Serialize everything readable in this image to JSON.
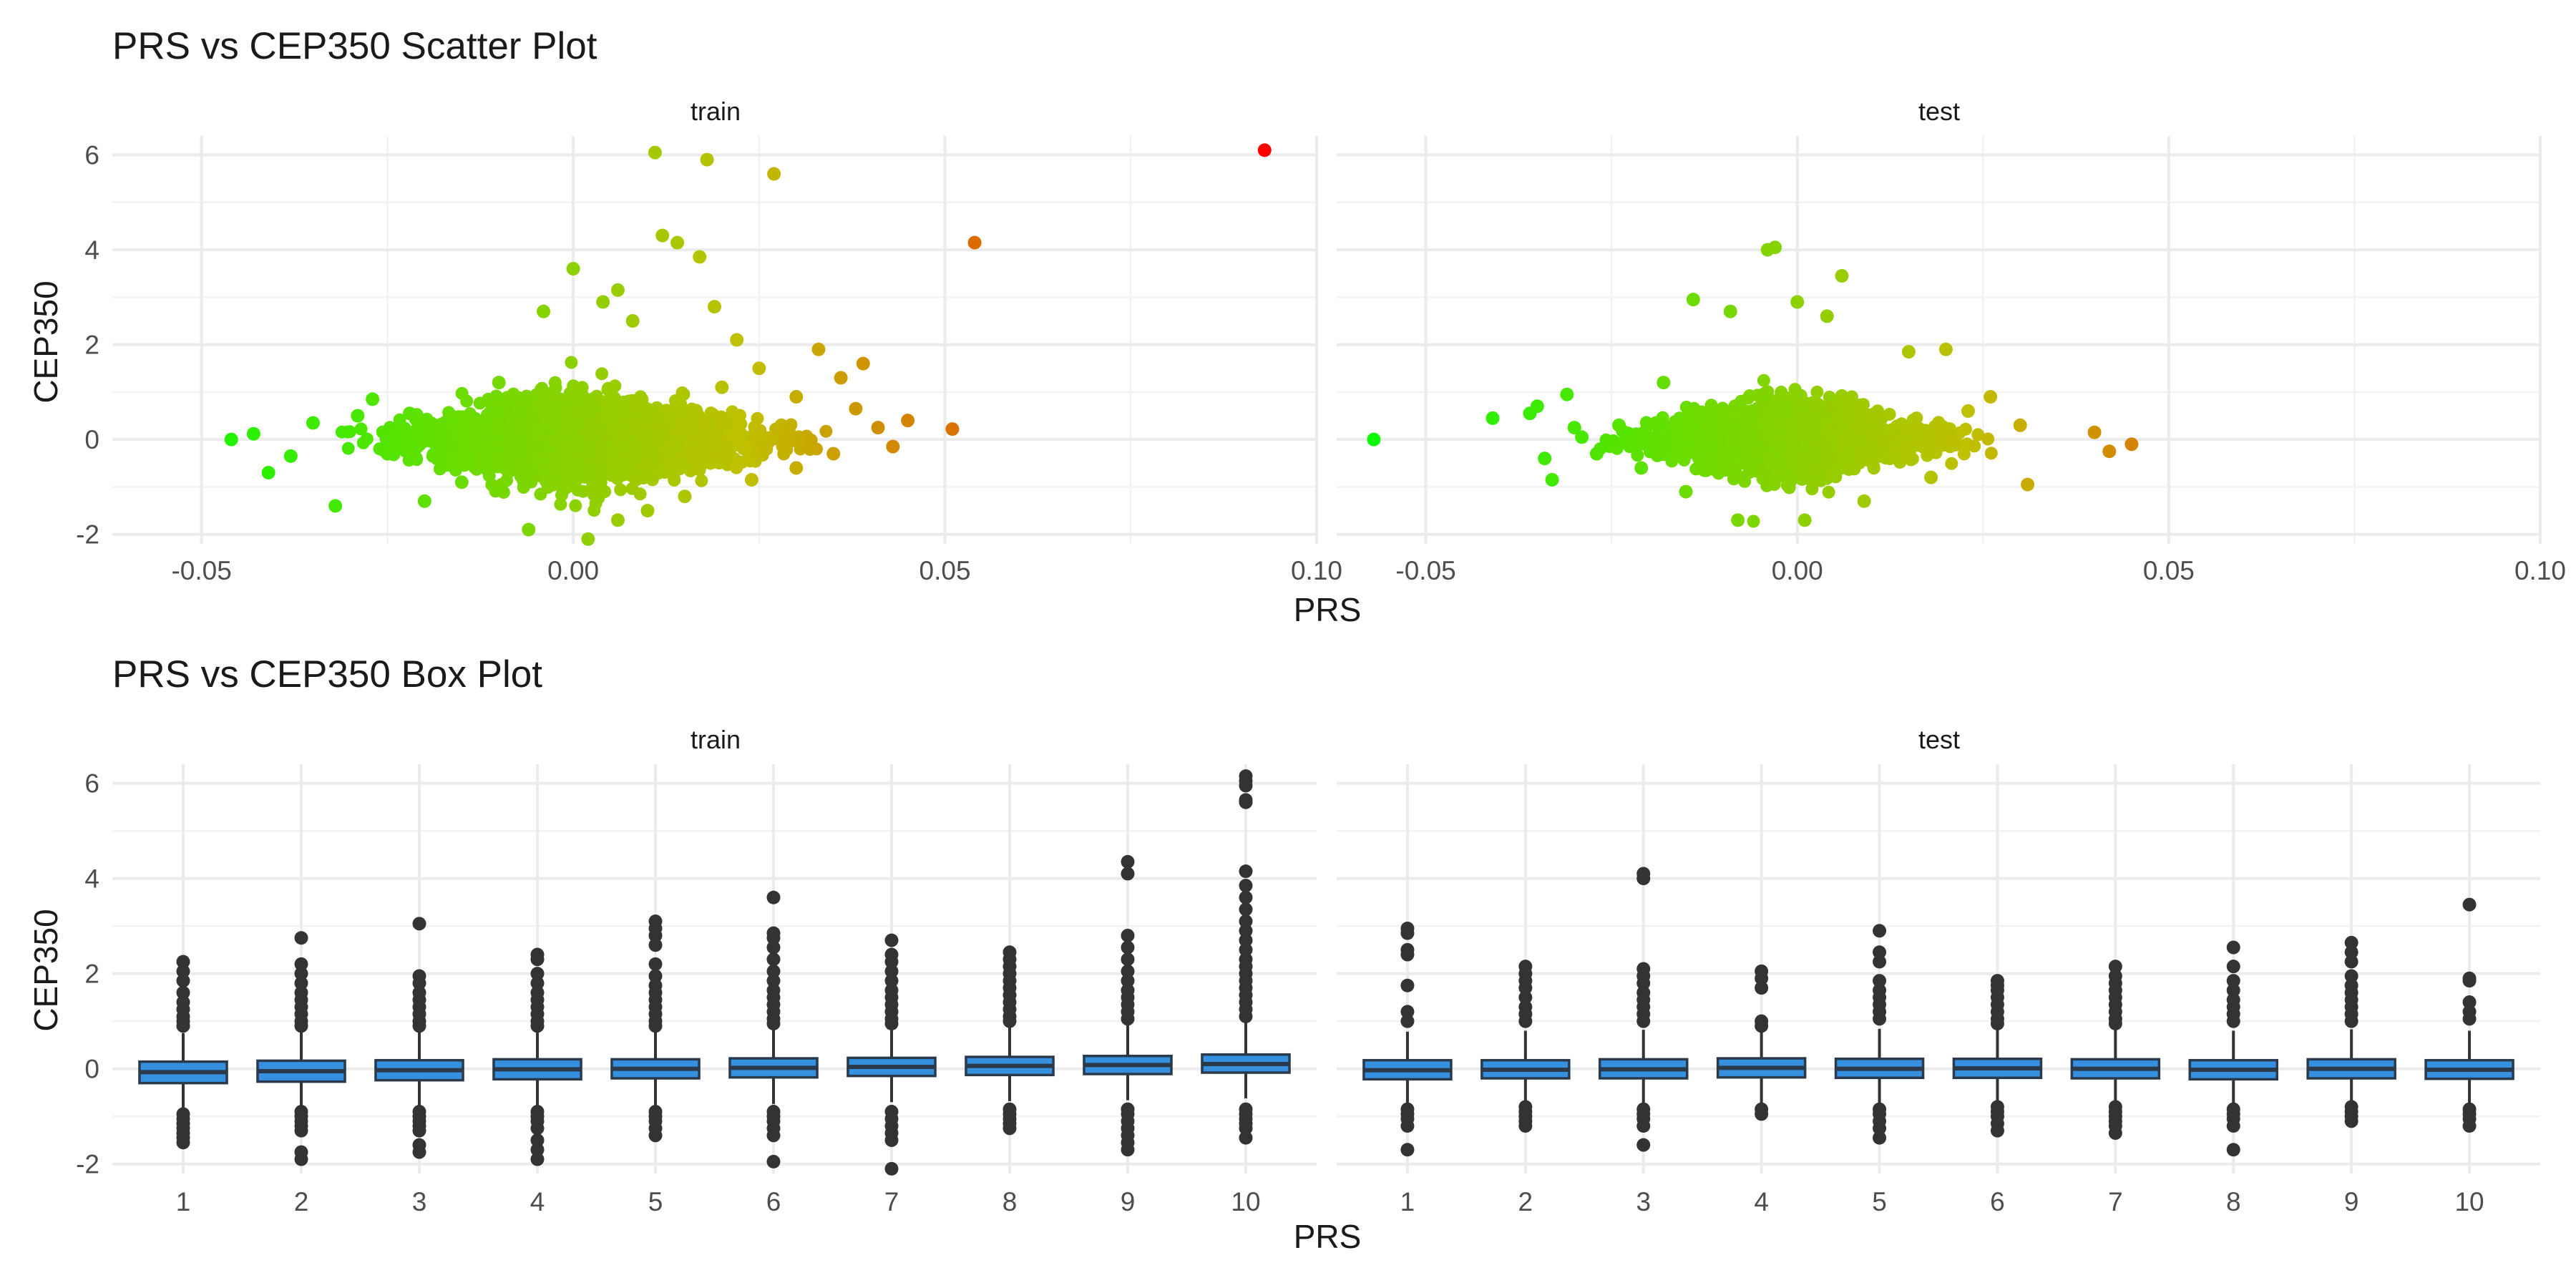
{
  "chart_data": [
    {
      "type": "scatter",
      "title": "PRS vs CEP350 Scatter Plot",
      "xlabel": "PRS",
      "ylabel": "CEP350",
      "xlim": [
        -0.062,
        0.1
      ],
      "ylim": [
        -2.2,
        6.4
      ],
      "x_ticks": [
        -0.05,
        0.0,
        0.05,
        0.1
      ],
      "x_tick_labels": [
        "-0.05",
        "0.00",
        "0.05",
        "0.10"
      ],
      "y_ticks": [
        -2,
        0,
        2,
        4,
        6
      ],
      "color_scale": {
        "low": "#00ff00",
        "mid": "#c0c000",
        "high": "#ff0000",
        "by": "PRS"
      },
      "grid": true,
      "panels": [
        {
          "name": "train",
          "bulk_summary": {
            "x_center": 0.002,
            "x_sd": 0.011,
            "y_sd": 0.45
          },
          "points": [
            [
              0.093,
              6.1
            ],
            [
              0.054,
              4.15
            ],
            [
              0.027,
              5.6
            ],
            [
              0.018,
              5.9
            ],
            [
              0.011,
              6.05
            ],
            [
              0.012,
              4.3
            ],
            [
              0.014,
              4.15
            ],
            [
              0.017,
              3.85
            ],
            [
              0.0,
              3.6
            ],
            [
              0.051,
              0.22
            ],
            [
              0.045,
              0.4
            ],
            [
              0.041,
              0.25
            ],
            [
              0.039,
              1.6
            ],
            [
              0.036,
              1.3
            ],
            [
              0.033,
              1.9
            ],
            [
              -0.046,
              0.0
            ],
            [
              -0.043,
              0.12
            ],
            [
              -0.041,
              -0.7
            ],
            [
              -0.038,
              -0.35
            ],
            [
              -0.035,
              0.35
            ],
            [
              -0.032,
              -1.4
            ],
            [
              -0.029,
              0.5
            ],
            [
              -0.027,
              0.85
            ],
            [
              -0.025,
              -0.3
            ],
            [
              -0.022,
              0.55
            ],
            [
              -0.02,
              -1.3
            ],
            [
              -0.018,
              0.3
            ],
            [
              -0.015,
              -0.9
            ],
            [
              -0.006,
              -1.9
            ],
            [
              0.002,
              -2.1
            ],
            [
              0.006,
              -1.7
            ],
            [
              0.01,
              -1.5
            ],
            [
              0.015,
              -1.2
            ],
            [
              0.022,
              2.1
            ],
            [
              0.025,
              1.5
            ],
            [
              0.03,
              0.9
            ],
            [
              0.03,
              -0.6
            ],
            [
              0.035,
              -0.3
            ],
            [
              0.038,
              0.65
            ],
            [
              0.043,
              -0.15
            ],
            [
              -0.004,
              2.7
            ],
            [
              0.004,
              2.9
            ],
            [
              0.008,
              2.5
            ],
            [
              0.019,
              2.8
            ],
            [
              0.006,
              3.15
            ],
            [
              -0.01,
              1.2
            ],
            [
              -0.012,
              -0.5
            ],
            [
              0.02,
              1.1
            ],
            [
              0.028,
              0.3
            ],
            [
              0.024,
              -0.85
            ]
          ]
        },
        {
          "name": "test",
          "bulk_summary": {
            "x_center": -0.001,
            "x_sd": 0.0085,
            "y_sd": 0.42
          },
          "points": [
            [
              -0.057,
              0.0
            ],
            [
              -0.041,
              0.45
            ],
            [
              -0.036,
              0.55
            ],
            [
              -0.035,
              0.7
            ],
            [
              -0.034,
              -0.4
            ],
            [
              -0.033,
              -0.85
            ],
            [
              -0.031,
              0.95
            ],
            [
              -0.03,
              0.25
            ],
            [
              -0.029,
              0.05
            ],
            [
              -0.027,
              -0.3
            ],
            [
              -0.024,
              0.3
            ],
            [
              -0.021,
              -0.6
            ],
            [
              -0.019,
              0.35
            ],
            [
              -0.014,
              2.95
            ],
            [
              -0.008,
              -1.7
            ],
            [
              -0.004,
              4.0
            ],
            [
              -0.003,
              4.05
            ],
            [
              0.006,
              3.45
            ],
            [
              0.04,
              0.15
            ],
            [
              0.042,
              -0.25
            ],
            [
              0.045,
              -0.1
            ],
            [
              0.031,
              -0.95
            ],
            [
              0.03,
              0.3
            ],
            [
              0.026,
              0.9
            ],
            [
              0.02,
              1.9
            ],
            [
              0.015,
              1.85
            ],
            [
              0.004,
              2.6
            ],
            [
              0.0,
              2.9
            ],
            [
              -0.009,
              2.7
            ],
            [
              0.001,
              -1.7
            ],
            [
              0.009,
              -1.3
            ],
            [
              -0.015,
              -1.1
            ],
            [
              -0.018,
              1.2
            ],
            [
              0.018,
              -0.8
            ],
            [
              0.023,
              0.6
            ]
          ]
        }
      ]
    },
    {
      "type": "box",
      "title": "PRS vs CEP350 Box Plot",
      "xlabel": "PRS",
      "ylabel": "CEP350",
      "categories": [
        "1",
        "2",
        "3",
        "4",
        "5",
        "6",
        "7",
        "8",
        "9",
        "10"
      ],
      "ylim": [
        -2.2,
        6.4
      ],
      "y_ticks": [
        -2,
        0,
        2,
        4,
        6
      ],
      "box_color": "#3690e0",
      "grid": true,
      "panels": [
        {
          "name": "train",
          "boxes": [
            {
              "q1": -0.3,
              "median": -0.07,
              "q3": 0.15,
              "lower": -0.85,
              "upper": 0.75,
              "outliers": [
                2.25,
                2.05,
                1.85,
                1.6,
                1.4,
                1.25,
                1.1,
                1.0,
                0.9,
                -0.95,
                -1.05,
                -1.15,
                -1.25,
                -1.35,
                -1.45,
                -1.55
              ]
            },
            {
              "q1": -0.27,
              "median": -0.05,
              "q3": 0.17,
              "lower": -0.82,
              "upper": 0.78,
              "outliers": [
                2.75,
                2.2,
                2.0,
                1.8,
                1.6,
                1.45,
                1.3,
                1.15,
                1.0,
                0.9,
                -0.9,
                -1.0,
                -1.1,
                -1.2,
                -1.3,
                -1.75,
                -1.9
              ]
            },
            {
              "q1": -0.24,
              "median": -0.03,
              "q3": 0.18,
              "lower": -0.8,
              "upper": 0.8,
              "outliers": [
                3.05,
                1.95,
                1.8,
                1.6,
                1.45,
                1.3,
                1.15,
                1.0,
                0.9,
                -0.9,
                -1.0,
                -1.1,
                -1.2,
                -1.3,
                -1.6,
                -1.75
              ]
            },
            {
              "q1": -0.22,
              "median": -0.01,
              "q3": 0.2,
              "lower": -0.78,
              "upper": 0.82,
              "outliers": [
                2.4,
                2.3,
                2.0,
                1.8,
                1.6,
                1.45,
                1.3,
                1.15,
                1.0,
                0.9,
                -0.9,
                -1.0,
                -1.1,
                -1.25,
                -1.5,
                -1.7,
                -1.9
              ]
            },
            {
              "q1": -0.2,
              "median": 0.0,
              "q3": 0.2,
              "lower": -0.76,
              "upper": 0.84,
              "outliers": [
                3.1,
                2.95,
                2.8,
                2.6,
                2.2,
                1.95,
                1.75,
                1.6,
                1.45,
                1.3,
                1.15,
                1.0,
                0.9,
                -0.9,
                -1.0,
                -1.1,
                -1.25,
                -1.4
              ]
            },
            {
              "q1": -0.18,
              "median": 0.02,
              "q3": 0.22,
              "lower": -0.74,
              "upper": 0.86,
              "outliers": [
                3.6,
                2.85,
                2.75,
                2.55,
                2.3,
                2.05,
                1.85,
                1.65,
                1.5,
                1.35,
                1.2,
                1.05,
                0.95,
                -0.9,
                -1.0,
                -1.1,
                -1.25,
                -1.4,
                -1.95
              ]
            },
            {
              "q1": -0.15,
              "median": 0.04,
              "q3": 0.23,
              "lower": -0.7,
              "upper": 0.9,
              "outliers": [
                2.7,
                2.4,
                2.25,
                2.05,
                1.85,
                1.65,
                1.5,
                1.35,
                1.2,
                1.05,
                0.95,
                -0.9,
                -1.05,
                -1.2,
                -1.35,
                -1.5,
                -2.1
              ]
            },
            {
              "q1": -0.13,
              "median": 0.06,
              "q3": 0.25,
              "lower": -0.68,
              "upper": 0.92,
              "outliers": [
                2.45,
                2.3,
                2.15,
                2.0,
                1.85,
                1.7,
                1.55,
                1.4,
                1.25,
                1.1,
                1.0,
                -0.85,
                -0.95,
                -1.05,
                -1.15,
                -1.25
              ]
            },
            {
              "q1": -0.11,
              "median": 0.08,
              "q3": 0.27,
              "lower": -0.66,
              "upper": 0.95,
              "outliers": [
                4.35,
                4.1,
                2.8,
                2.55,
                2.3,
                2.05,
                1.85,
                1.65,
                1.5,
                1.35,
                1.2,
                1.05,
                -0.85,
                -0.95,
                -1.1,
                -1.25,
                -1.4,
                -1.55,
                -1.7
              ]
            },
            {
              "q1": -0.08,
              "median": 0.1,
              "q3": 0.3,
              "lower": -0.62,
              "upper": 1.0,
              "outliers": [
                6.15,
                6.05,
                5.95,
                5.65,
                5.6,
                4.15,
                3.85,
                3.6,
                3.35,
                3.1,
                2.9,
                2.7,
                2.5,
                2.3,
                2.15,
                2.0,
                1.85,
                1.7,
                1.55,
                1.4,
                1.25,
                1.1,
                -0.85,
                -0.95,
                -1.05,
                -1.15,
                -1.25,
                -1.45
              ]
            }
          ]
        },
        {
          "name": "test",
          "boxes": [
            {
              "q1": -0.22,
              "median": -0.03,
              "q3": 0.18,
              "lower": -0.78,
              "upper": 0.78,
              "outliers": [
                2.95,
                2.85,
                2.5,
                2.4,
                1.75,
                1.2,
                1.0,
                -0.85,
                -0.95,
                -1.05,
                -1.2,
                -1.7
              ]
            },
            {
              "q1": -0.2,
              "median": -0.02,
              "q3": 0.18,
              "lower": -0.76,
              "upper": 0.8,
              "outliers": [
                2.15,
                2.0,
                1.85,
                1.7,
                1.5,
                1.3,
                1.15,
                1.0,
                -0.8,
                -0.9,
                -1.0,
                -1.1,
                -1.2
              ]
            },
            {
              "q1": -0.2,
              "median": -0.01,
              "q3": 0.2,
              "lower": -0.76,
              "upper": 0.82,
              "outliers": [
                4.1,
                4.0,
                2.1,
                1.95,
                1.8,
                1.6,
                1.45,
                1.3,
                1.15,
                1.0,
                -0.85,
                -0.95,
                -1.05,
                -1.2,
                -1.6
              ]
            },
            {
              "q1": -0.18,
              "median": 0.02,
              "q3": 0.22,
              "lower": -0.72,
              "upper": 0.86,
              "outliers": [
                2.05,
                1.9,
                1.7,
                1.0,
                0.9,
                -0.85,
                -0.95
              ]
            },
            {
              "q1": -0.19,
              "median": 0.0,
              "q3": 0.21,
              "lower": -0.74,
              "upper": 0.84,
              "outliers": [
                2.9,
                2.45,
                2.25,
                1.85,
                1.65,
                1.5,
                1.35,
                1.2,
                1.05,
                -0.85,
                -0.95,
                -1.1,
                -1.25,
                -1.45
              ]
            },
            {
              "q1": -0.19,
              "median": 0.01,
              "q3": 0.21,
              "lower": -0.74,
              "upper": 0.84,
              "outliers": [
                1.85,
                1.75,
                1.65,
                1.5,
                1.35,
                1.2,
                1.05,
                0.95,
                -0.8,
                -0.9,
                -1.0,
                -1.15,
                -1.3
              ]
            },
            {
              "q1": -0.2,
              "median": 0.0,
              "q3": 0.2,
              "lower": -0.75,
              "upper": 0.83,
              "outliers": [
                2.15,
                1.95,
                1.8,
                1.65,
                1.5,
                1.35,
                1.2,
                1.05,
                0.95,
                -0.8,
                -0.9,
                -1.0,
                -1.1,
                -1.2,
                -1.35
              ]
            },
            {
              "q1": -0.22,
              "median": -0.02,
              "q3": 0.18,
              "lower": -0.78,
              "upper": 0.8,
              "outliers": [
                2.55,
                2.15,
                1.85,
                1.65,
                1.45,
                1.3,
                1.15,
                1.0,
                -0.85,
                -0.95,
                -1.05,
                -1.2,
                -1.7
              ]
            },
            {
              "q1": -0.2,
              "median": 0.0,
              "q3": 0.2,
              "lower": -0.75,
              "upper": 0.83,
              "outliers": [
                2.65,
                2.45,
                2.25,
                1.95,
                1.75,
                1.6,
                1.45,
                1.3,
                1.15,
                1.0,
                -0.8,
                -0.9,
                -1.0,
                -1.1
              ]
            },
            {
              "q1": -0.21,
              "median": -0.02,
              "q3": 0.18,
              "lower": -0.77,
              "upper": 0.8,
              "outliers": [
                3.45,
                1.9,
                1.85,
                1.4,
                1.2,
                1.05,
                -0.85,
                -0.95,
                -1.05,
                -1.2
              ]
            }
          ]
        }
      ]
    }
  ]
}
